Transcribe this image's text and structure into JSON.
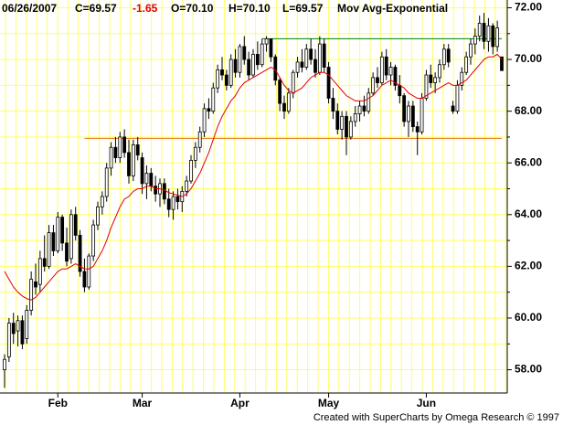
{
  "chart_data": {
    "type": "candlestick",
    "header": {
      "date": "06/26/2007",
      "close": "C=69.57",
      "change": "-1.65",
      "change_color": "#e00000",
      "open": "O=70.10",
      "high": "H=70.10",
      "low": "L=69.57"
    },
    "footer": "Created with SuperCharts by Omega Research © 1997",
    "ylim": [
      57.1,
      72.3
    ],
    "yticks": [
      {
        "value": 58,
        "label": "58.00"
      },
      {
        "value": 60,
        "label": "60.00"
      },
      {
        "value": 62,
        "label": "62.00"
      },
      {
        "value": 64,
        "label": "64.00"
      },
      {
        "value": 66,
        "label": "66.00"
      },
      {
        "value": 68,
        "label": "68.00"
      },
      {
        "value": 70,
        "label": "70.00"
      },
      {
        "value": 72,
        "label": "72.00"
      }
    ],
    "yminor": [
      59,
      61,
      63,
      65,
      67,
      69,
      71
    ],
    "xlim": [
      0,
      112
    ],
    "xticks": [
      {
        "value": 12,
        "label": "Feb"
      },
      {
        "value": 31,
        "label": "Mar"
      },
      {
        "value": 53,
        "label": "Apr"
      },
      {
        "value": 73,
        "label": "May"
      },
      {
        "value": 95,
        "label": "Jun"
      }
    ],
    "grid": true,
    "grid_color": "#ffff66",
    "up_color": "#ffffff",
    "down_color": "#000000",
    "ohlc": [
      [
        58.0,
        58.6,
        57.3,
        58.4
      ],
      [
        58.5,
        60.0,
        58.3,
        59.8
      ],
      [
        59.8,
        60.2,
        59.0,
        59.4
      ],
      [
        59.5,
        60.1,
        58.9,
        59.9
      ],
      [
        59.9,
        60.1,
        58.8,
        59.0
      ],
      [
        59.2,
        60.5,
        59.0,
        60.3
      ],
      [
        60.3,
        61.8,
        60.1,
        61.5
      ],
      [
        61.4,
        62.1,
        60.9,
        61.2
      ],
      [
        61.3,
        62.6,
        61.0,
        62.3
      ],
      [
        62.3,
        63.2,
        61.8,
        62.0
      ],
      [
        62.0,
        63.6,
        61.9,
        63.3
      ],
      [
        63.3,
        63.6,
        62.4,
        62.6
      ],
      [
        62.6,
        64.1,
        62.5,
        63.9
      ],
      [
        63.9,
        64.0,
        62.6,
        62.9
      ],
      [
        62.9,
        63.5,
        62.0,
        62.2
      ],
      [
        62.3,
        64.2,
        62.1,
        64.0
      ],
      [
        64.0,
        64.3,
        63.0,
        63.2
      ],
      [
        63.2,
        63.4,
        61.6,
        61.8
      ],
      [
        61.8,
        62.3,
        61.0,
        61.2
      ],
      [
        61.2,
        62.5,
        61.1,
        62.4
      ],
      [
        62.4,
        63.8,
        62.2,
        63.6
      ],
      [
        63.6,
        64.5,
        63.4,
        64.3
      ],
      [
        64.3,
        64.9,
        64.0,
        64.7
      ],
      [
        64.7,
        66.0,
        64.5,
        65.8
      ],
      [
        65.8,
        66.8,
        65.5,
        66.6
      ],
      [
        66.6,
        67.0,
        66.0,
        66.2
      ],
      [
        66.2,
        67.2,
        66.0,
        67.0
      ],
      [
        67.0,
        67.3,
        66.2,
        66.4
      ],
      [
        66.4,
        66.9,
        65.2,
        65.5
      ],
      [
        65.5,
        66.9,
        65.3,
        66.7
      ],
      [
        66.7,
        67.0,
        66.1,
        66.3
      ],
      [
        66.2,
        66.4,
        64.8,
        65.2
      ],
      [
        65.2,
        65.9,
        64.6,
        65.6
      ],
      [
        65.6,
        65.8,
        64.9,
        65.1
      ],
      [
        65.1,
        65.5,
        64.5,
        64.8
      ],
      [
        64.8,
        65.4,
        64.3,
        65.2
      ],
      [
        65.2,
        65.4,
        64.4,
        64.6
      ],
      [
        64.6,
        65.0,
        63.9,
        64.2
      ],
      [
        64.2,
        64.9,
        63.8,
        64.7
      ],
      [
        64.7,
        65.0,
        64.2,
        64.5
      ],
      [
        64.5,
        65.1,
        64.1,
        64.9
      ],
      [
        64.9,
        65.5,
        64.7,
        65.3
      ],
      [
        65.3,
        66.3,
        65.2,
        66.1
      ],
      [
        66.1,
        66.8,
        65.8,
        66.6
      ],
      [
        66.6,
        67.4,
        66.4,
        67.2
      ],
      [
        67.2,
        68.3,
        67.0,
        68.1
      ],
      [
        68.1,
        68.5,
        67.7,
        68.0
      ],
      [
        68.0,
        69.1,
        67.9,
        68.9
      ],
      [
        68.9,
        69.8,
        68.7,
        69.6
      ],
      [
        69.6,
        70.1,
        69.2,
        69.4
      ],
      [
        69.4,
        69.6,
        68.8,
        69.0
      ],
      [
        69.0,
        70.2,
        68.9,
        70.0
      ],
      [
        70.0,
        70.4,
        69.3,
        69.5
      ],
      [
        69.5,
        70.6,
        69.3,
        70.5
      ],
      [
        70.5,
        70.9,
        69.8,
        70.0
      ],
      [
        70.0,
        70.3,
        69.2,
        69.4
      ],
      [
        69.4,
        70.4,
        69.3,
        70.2
      ],
      [
        70.2,
        70.7,
        69.6,
        69.8
      ],
      [
        69.8,
        70.8,
        69.7,
        70.6
      ],
      [
        70.6,
        70.9,
        70.3,
        70.8
      ],
      [
        70.8,
        70.8,
        69.9,
        70.1
      ],
      [
        70.1,
        70.2,
        69.0,
        69.2
      ],
      [
        69.2,
        69.3,
        68.0,
        68.3
      ],
      [
        68.3,
        68.6,
        67.7,
        68.0
      ],
      [
        68.0,
        68.9,
        67.9,
        68.7
      ],
      [
        68.7,
        69.6,
        68.5,
        69.5
      ],
      [
        69.5,
        70.1,
        69.3,
        69.9
      ],
      [
        69.9,
        70.4,
        69.5,
        69.7
      ],
      [
        69.7,
        70.6,
        69.6,
        70.4
      ],
      [
        70.4,
        70.8,
        69.8,
        70.0
      ],
      [
        70.0,
        70.4,
        69.3,
        69.5
      ],
      [
        69.5,
        70.9,
        69.4,
        70.6
      ],
      [
        70.6,
        70.8,
        69.5,
        69.7
      ],
      [
        69.7,
        69.9,
        68.3,
        68.5
      ],
      [
        68.5,
        68.9,
        67.7,
        68.0
      ],
      [
        68.0,
        68.3,
        67.1,
        67.3
      ],
      [
        67.3,
        68.0,
        66.9,
        67.8
      ],
      [
        67.8,
        68.0,
        66.3,
        67.0
      ],
      [
        67.0,
        67.8,
        66.9,
        67.6
      ],
      [
        67.6,
        68.2,
        67.4,
        67.9
      ],
      [
        67.9,
        68.4,
        67.6,
        68.2
      ],
      [
        68.2,
        68.6,
        67.8,
        68.0
      ],
      [
        68.0,
        68.9,
        67.9,
        68.7
      ],
      [
        68.7,
        69.5,
        68.6,
        69.3
      ],
      [
        69.3,
        69.7,
        68.9,
        69.1
      ],
      [
        69.1,
        70.3,
        69.0,
        70.1
      ],
      [
        70.1,
        70.4,
        69.2,
        69.4
      ],
      [
        69.4,
        69.9,
        69.0,
        69.7
      ],
      [
        69.7,
        69.8,
        68.8,
        69.0
      ],
      [
        69.0,
        69.4,
        68.3,
        68.6
      ],
      [
        68.6,
        68.7,
        67.4,
        67.6
      ],
      [
        67.6,
        68.4,
        67.0,
        68.2
      ],
      [
        68.2,
        68.4,
        67.2,
        67.4
      ],
      [
        67.4,
        67.6,
        66.3,
        67.2
      ],
      [
        67.2,
        68.7,
        67.1,
        68.5
      ],
      [
        68.5,
        69.6,
        68.4,
        69.4
      ],
      [
        69.4,
        69.8,
        68.9,
        69.1
      ],
      [
        69.1,
        69.5,
        68.7,
        69.3
      ],
      [
        69.3,
        70.0,
        69.1,
        69.8
      ],
      [
        69.8,
        70.6,
        69.6,
        70.4
      ],
      [
        70.4,
        70.6,
        69.7,
        69.9
      ],
      [
        68.2,
        68.4,
        67.9,
        68.0
      ],
      [
        68.0,
        69.2,
        67.9,
        69.0
      ],
      [
        69.0,
        69.7,
        68.8,
        69.5
      ],
      [
        69.5,
        70.3,
        69.4,
        70.1
      ],
      [
        70.1,
        70.8,
        69.8,
        70.6
      ],
      [
        70.6,
        71.2,
        70.2,
        70.9
      ],
      [
        70.9,
        71.7,
        70.7,
        71.4
      ],
      [
        71.4,
        71.8,
        70.4,
        70.7
      ],
      [
        70.7,
        71.6,
        70.3,
        71.3
      ],
      [
        71.3,
        71.4,
        70.2,
        70.5
      ],
      [
        70.5,
        71.5,
        70.3,
        71.22
      ],
      [
        70.1,
        70.1,
        69.57,
        69.57
      ]
    ],
    "ema": {
      "name": "Mov Avg-Exponential",
      "color": "#e00000",
      "values": [
        61.8,
        61.5,
        61.2,
        61.0,
        60.85,
        60.75,
        60.7,
        60.8,
        61.0,
        61.2,
        61.4,
        61.6,
        61.8,
        61.9,
        61.9,
        62.0,
        62.1,
        62.0,
        61.9,
        61.9,
        62.0,
        62.3,
        62.6,
        63.0,
        63.5,
        63.9,
        64.3,
        64.6,
        64.7,
        64.9,
        65.0,
        65.0,
        65.1,
        65.1,
        65.0,
        65.0,
        64.95,
        64.85,
        64.8,
        64.75,
        64.7,
        64.8,
        65.0,
        65.3,
        65.6,
        66.0,
        66.4,
        66.9,
        67.4,
        67.8,
        68.1,
        68.4,
        68.6,
        68.9,
        69.1,
        69.2,
        69.3,
        69.4,
        69.5,
        69.6,
        69.7,
        69.6,
        69.3,
        69.0,
        68.8,
        68.7,
        68.8,
        68.9,
        69.1,
        69.3,
        69.4,
        69.5,
        69.5,
        69.4,
        69.2,
        69.0,
        68.8,
        68.6,
        68.5,
        68.4,
        68.4,
        68.4,
        68.5,
        68.6,
        68.8,
        69.0,
        69.1,
        69.2,
        69.1,
        69.0,
        68.9,
        68.7,
        68.6,
        68.5,
        68.5,
        68.6,
        68.7,
        68.8,
        68.9,
        69.0,
        69.1,
        69.0,
        69.0,
        69.1,
        69.2,
        69.4,
        69.6,
        69.8,
        70.0,
        70.1,
        70.1,
        70.2,
        70.0
      ]
    },
    "hlines": [
      {
        "value": 70.8,
        "start": 58,
        "end": 112,
        "color": "#008000"
      },
      {
        "value": 66.95,
        "start": 18,
        "end": 112,
        "color": "#e07020"
      }
    ]
  }
}
